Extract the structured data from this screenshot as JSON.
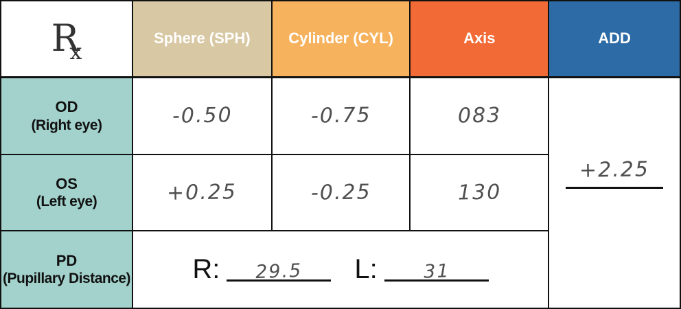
{
  "header": {
    "rx": {
      "r": "R",
      "x": "x"
    },
    "columns": [
      {
        "label": "Sphere (SPH)"
      },
      {
        "label": "Cylinder (CYL)"
      },
      {
        "label": "Axis"
      },
      {
        "label": "ADD"
      }
    ]
  },
  "rows": [
    {
      "label_main": "OD",
      "label_sub": "(Right eye)",
      "sphere": "-0.50",
      "cylinder": "-0.75",
      "axis": "083"
    },
    {
      "label_main": "OS",
      "label_sub": "(Left eye)",
      "sphere": "+0.25",
      "cylinder": "-0.25",
      "axis": "130"
    }
  ],
  "add": {
    "value": "+2.25"
  },
  "pd": {
    "label_main": "PD",
    "label_sub": "(Pupillary Distance)",
    "r_label": "R:",
    "r_value": "29.5",
    "l_label": "L:",
    "l_value": "31"
  },
  "colors": {
    "header-sphere-bg": "#d8c8a3",
    "header-cylinder-bg": "#f7b25e",
    "header-axis-bg": "#f26a35",
    "header-add-bg": "#2c6ba6",
    "row-label-bg": "#a3d2cc",
    "border": "#111111",
    "handwriting": "#4f4f4f"
  }
}
